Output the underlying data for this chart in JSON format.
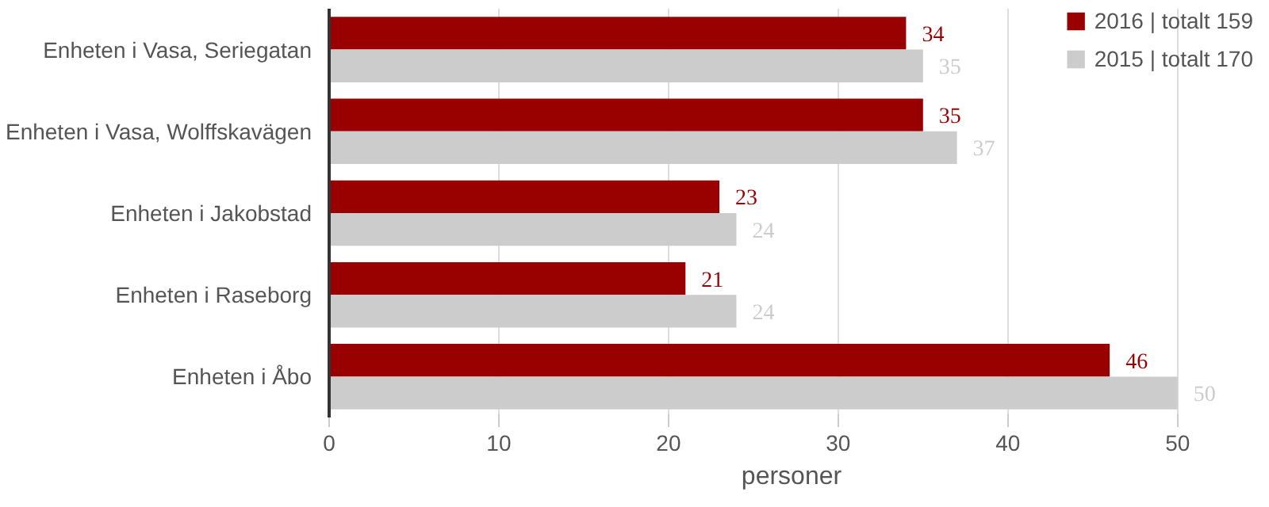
{
  "chart_data": {
    "type": "bar",
    "orientation": "horizontal",
    "xlabel": "personer",
    "categories": [
      "Enheten i Vasa, Seriegatan",
      "Enheten i Vasa, Wolffskavägen",
      "Enheten i Jakobstad",
      "Enheten i Raseborg",
      "Enheten i Åbo"
    ],
    "series": [
      {
        "name": "2016 | totalt 159",
        "color": "#990000",
        "values": [
          34,
          35,
          23,
          21,
          46
        ]
      },
      {
        "name": "2015 | totalt 170",
        "color": "#cccccc",
        "values": [
          35,
          37,
          24,
          24,
          50
        ]
      }
    ],
    "xlim": [
      0,
      50
    ],
    "xticks": [
      0,
      10,
      20,
      30,
      40,
      50
    ],
    "grid": "x",
    "legend": "top right",
    "data_labels": true
  }
}
